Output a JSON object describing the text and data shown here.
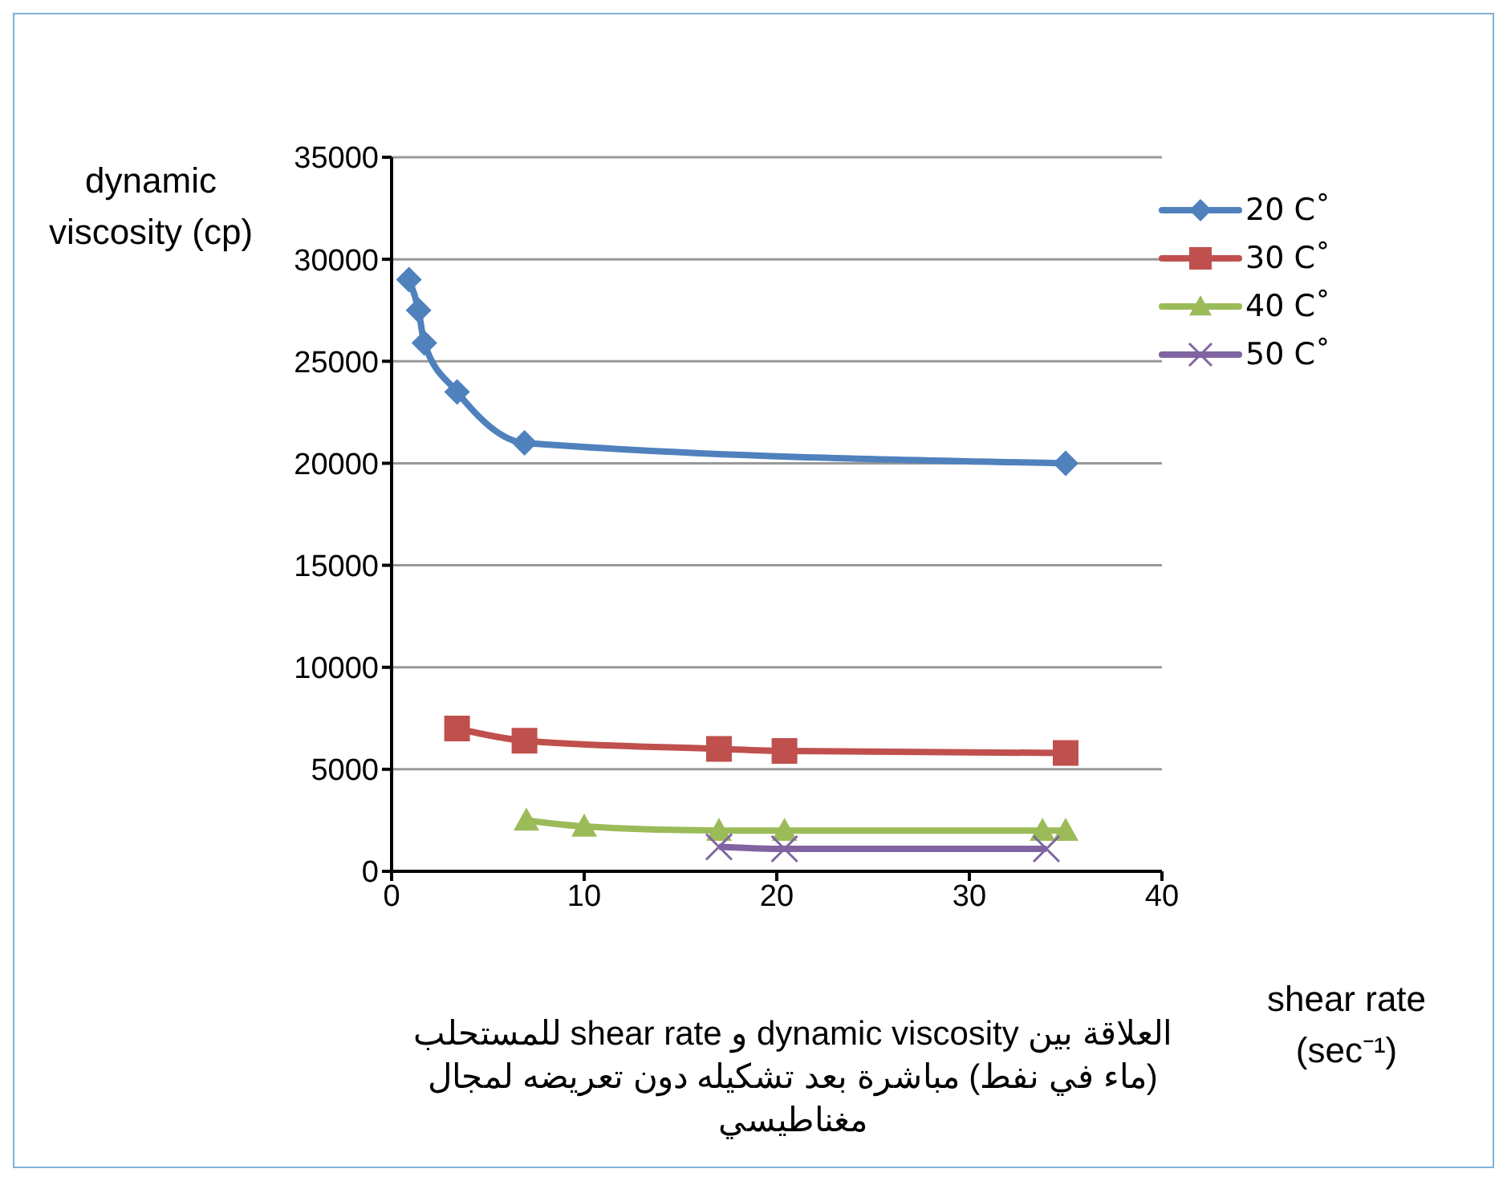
{
  "chart_data": {
    "type": "line",
    "xlabel": "shear rate (sec⁻¹)",
    "ylabel": "dynamic viscosity (cp)",
    "annotations": [
      "العلاقة بين dynamic viscosity و shear rate للمستحلب (ماء في نفط) مباشرة بعد تشكيله دون تعريضه لمجال مغناطيسي"
    ],
    "xlim": [
      0,
      40
    ],
    "xticks": [
      0,
      10,
      20,
      30,
      40
    ],
    "ylim": [
      0,
      35000
    ],
    "yticks": [
      0,
      5000,
      10000,
      15000,
      20000,
      25000,
      30000,
      35000
    ],
    "grid": "y",
    "legend": "top right",
    "series": [
      {
        "name": "20 Cْ",
        "color": "#4f81bd",
        "marker": "diamond",
        "x": [
          0.9,
          1.4,
          1.7,
          3.4,
          6.9,
          35
        ],
        "values": [
          29000,
          27500,
          25900,
          23500,
          21000,
          20000
        ]
      },
      {
        "name": "30 Cْ",
        "color": "#c0504d",
        "marker": "square",
        "x": [
          3.4,
          6.9,
          17,
          20.4,
          35
        ],
        "values": [
          7000,
          6400,
          6000,
          5900,
          5800
        ]
      },
      {
        "name": "40 Cْ",
        "color": "#9bbb59",
        "marker": "triangle",
        "x": [
          7,
          10,
          17,
          20.4,
          33.8,
          35
        ],
        "values": [
          2500,
          2200,
          2000,
          2000,
          2000,
          2000
        ]
      },
      {
        "name": "50 Cْ",
        "color": "#8064a2",
        "marker": "cross",
        "x": [
          17,
          20.4,
          34
        ],
        "values": [
          1200,
          1100,
          1100
        ]
      }
    ]
  }
}
